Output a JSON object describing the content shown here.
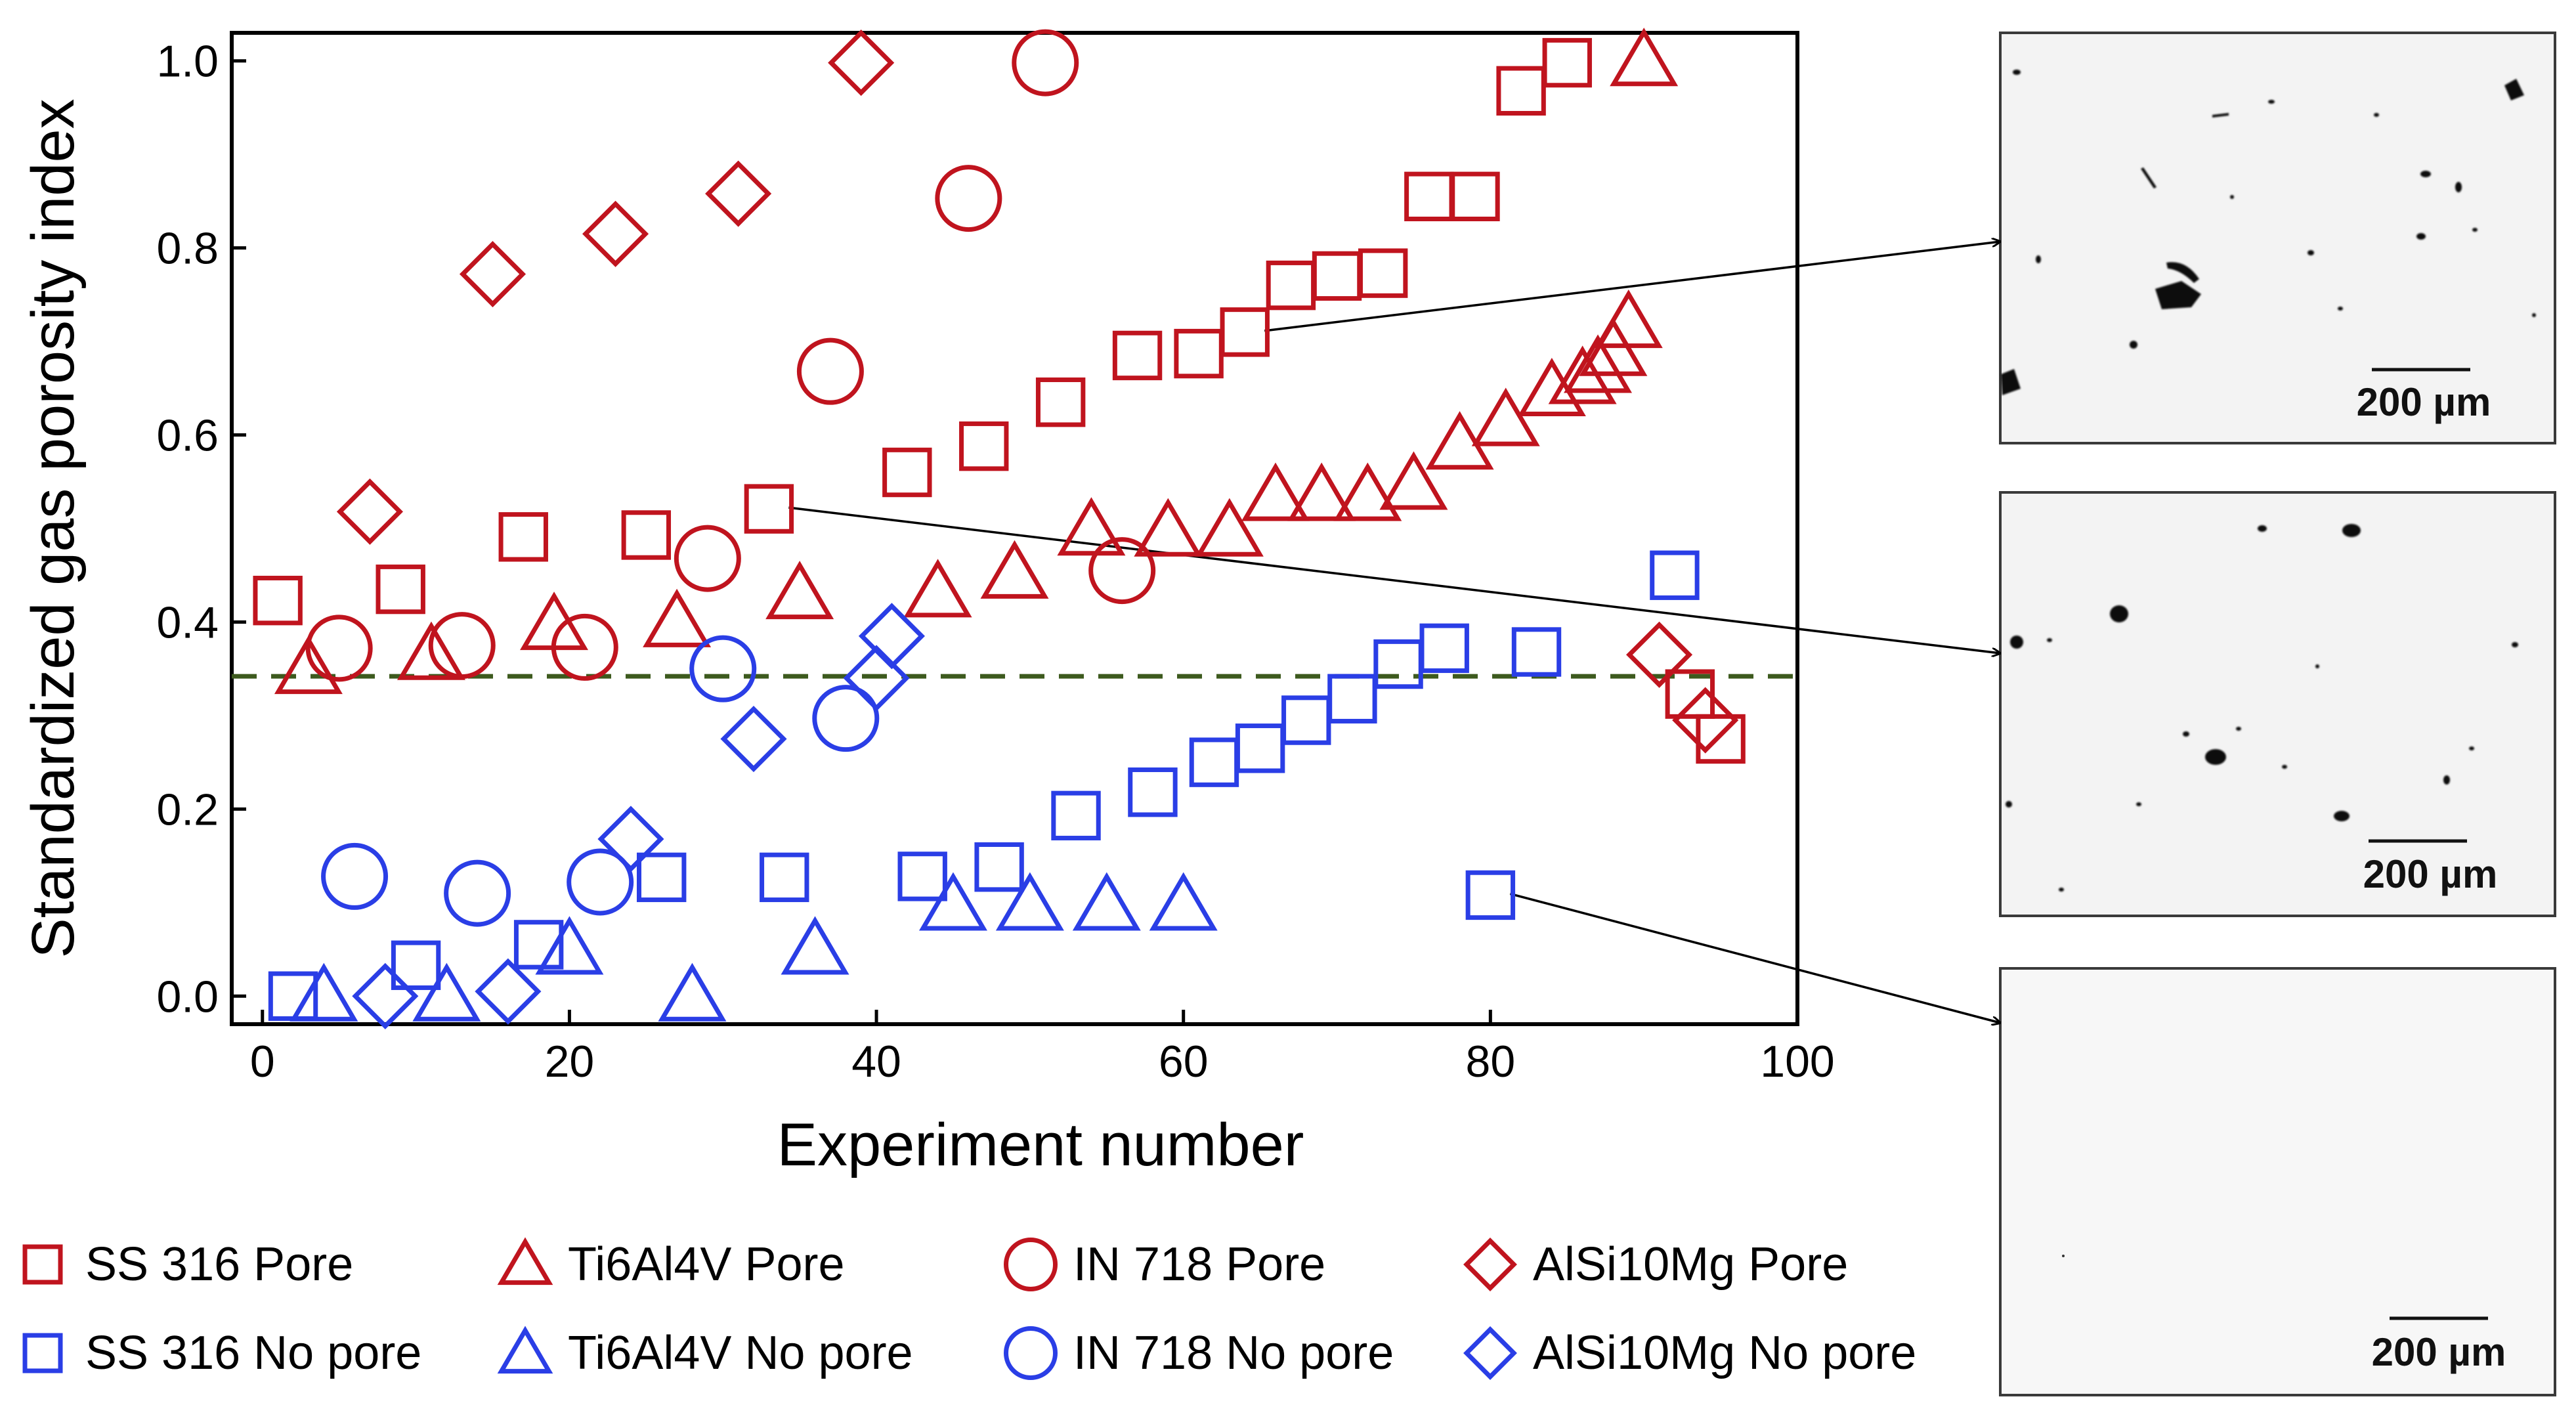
{
  "chart_data": {
    "type": "scatter",
    "xlabel": "Experiment number",
    "ylabel": "Standardized gas porosity index",
    "xlim": [
      -2,
      100
    ],
    "ylim": [
      -0.03,
      1.03
    ],
    "xticks": [
      0,
      20,
      40,
      60,
      80,
      100
    ],
    "xtick_labels": [
      "0",
      "20",
      "40",
      "60",
      "80",
      "100"
    ],
    "yticks": [
      0.0,
      0.2,
      0.4,
      0.6,
      0.8,
      1.0
    ],
    "ytick_labels": [
      "0.0",
      "0.2",
      "0.4",
      "0.6",
      "0.8",
      "1.0"
    ],
    "threshold": 0.342,
    "threshold_color": "#3d5a1e",
    "colors": {
      "pore": "#c0141e",
      "no_pore": "#2a3ee6"
    },
    "series": [
      {
        "name": "SS 316 Pore",
        "marker": "square",
        "class": "pore",
        "points": [
          [
            1,
            0.423
          ],
          [
            9,
            0.435
          ],
          [
            17,
            0.491
          ],
          [
            25,
            0.493
          ],
          [
            33,
            0.521
          ],
          [
            42,
            0.56
          ],
          [
            47,
            0.588
          ],
          [
            52,
            0.635
          ],
          [
            57,
            0.685
          ],
          [
            61,
            0.687
          ],
          [
            64,
            0.71
          ],
          [
            67,
            0.76
          ],
          [
            70,
            0.77
          ],
          [
            73,
            0.773
          ],
          [
            76,
            0.855
          ],
          [
            79,
            0.855
          ],
          [
            82,
            0.968
          ],
          [
            85,
            0.998
          ],
          [
            93,
            0.323
          ],
          [
            95,
            0.275
          ]
        ]
      },
      {
        "name": "Ti6Al4V Pore",
        "marker": "triangle",
        "class": "pore",
        "points": [
          [
            3,
            0.35
          ],
          [
            11,
            0.365
          ],
          [
            19,
            0.397
          ],
          [
            27,
            0.4
          ],
          [
            35,
            0.43
          ],
          [
            44,
            0.432
          ],
          [
            49,
            0.452
          ],
          [
            54,
            0.498
          ],
          [
            59,
            0.497
          ],
          [
            63,
            0.497
          ],
          [
            66,
            0.535
          ],
          [
            69,
            0.535
          ],
          [
            72,
            0.535
          ],
          [
            75,
            0.547
          ],
          [
            78,
            0.59
          ],
          [
            81,
            0.615
          ],
          [
            84,
            0.647
          ],
          [
            86,
            0.66
          ],
          [
            87,
            0.672
          ],
          [
            88,
            0.69
          ],
          [
            89,
            0.72
          ],
          [
            90,
            1.0
          ]
        ]
      },
      {
        "name": "IN 718 Pore",
        "marker": "circle",
        "class": "pore",
        "points": [
          [
            5,
            0.372
          ],
          [
            13,
            0.375
          ],
          [
            21,
            0.373
          ],
          [
            29,
            0.468
          ],
          [
            37,
            0.668
          ],
          [
            46,
            0.853
          ],
          [
            51,
            0.998
          ],
          [
            56,
            0.455
          ]
        ]
      },
      {
        "name": "AlSi10Mg Pore",
        "marker": "diamond",
        "class": "pore",
        "points": [
          [
            7,
            0.518
          ],
          [
            15,
            0.772
          ],
          [
            23,
            0.815
          ],
          [
            31,
            0.858
          ],
          [
            39,
            0.998
          ],
          [
            91,
            0.365
          ],
          [
            94,
            0.295
          ]
        ]
      },
      {
        "name": "SS 316 No pore",
        "marker": "square",
        "class": "no_pore",
        "points": [
          [
            2,
            0.0
          ],
          [
            10,
            0.033
          ],
          [
            18,
            0.055
          ],
          [
            26,
            0.127
          ],
          [
            34,
            0.127
          ],
          [
            43,
            0.128
          ],
          [
            48,
            0.138
          ],
          [
            53,
            0.193
          ],
          [
            58,
            0.218
          ],
          [
            62,
            0.25
          ],
          [
            65,
            0.265
          ],
          [
            68,
            0.295
          ],
          [
            71,
            0.318
          ],
          [
            74,
            0.355
          ],
          [
            77,
            0.372
          ],
          [
            80,
            0.108
          ],
          [
            83,
            0.368
          ],
          [
            92,
            0.45
          ]
        ]
      },
      {
        "name": "Ti6Al4V No pore",
        "marker": "triangle",
        "class": "no_pore",
        "points": [
          [
            4,
            0.0
          ],
          [
            12,
            0.0
          ],
          [
            20,
            0.05
          ],
          [
            28,
            0.0
          ],
          [
            36,
            0.05
          ],
          [
            45,
            0.097
          ],
          [
            50,
            0.097
          ],
          [
            55,
            0.097
          ],
          [
            60,
            0.097
          ]
        ]
      },
      {
        "name": "IN 718 No pore",
        "marker": "circle",
        "class": "no_pore",
        "points": [
          [
            6,
            0.128
          ],
          [
            14,
            0.11
          ],
          [
            22,
            0.122
          ],
          [
            30,
            0.35
          ],
          [
            38,
            0.297
          ]
        ]
      },
      {
        "name": "AlSi10Mg No pore",
        "marker": "diamond",
        "class": "no_pore",
        "points": [
          [
            8,
            0.0
          ],
          [
            16,
            0.005
          ],
          [
            24,
            0.168
          ],
          [
            32,
            0.275
          ],
          [
            40,
            0.34
          ],
          [
            41,
            0.385
          ]
        ]
      }
    ],
    "legend_position": "bottom",
    "annotations": [
      {
        "label": "200 µm",
        "from": [
          64,
          0.71
        ],
        "panel": 1
      },
      {
        "label": "200 µm",
        "from": [
          33,
          0.521
        ],
        "panel": 2
      },
      {
        "label": "200 µm",
        "from": [
          80,
          0.108
        ],
        "panel": 3
      }
    ]
  }
}
